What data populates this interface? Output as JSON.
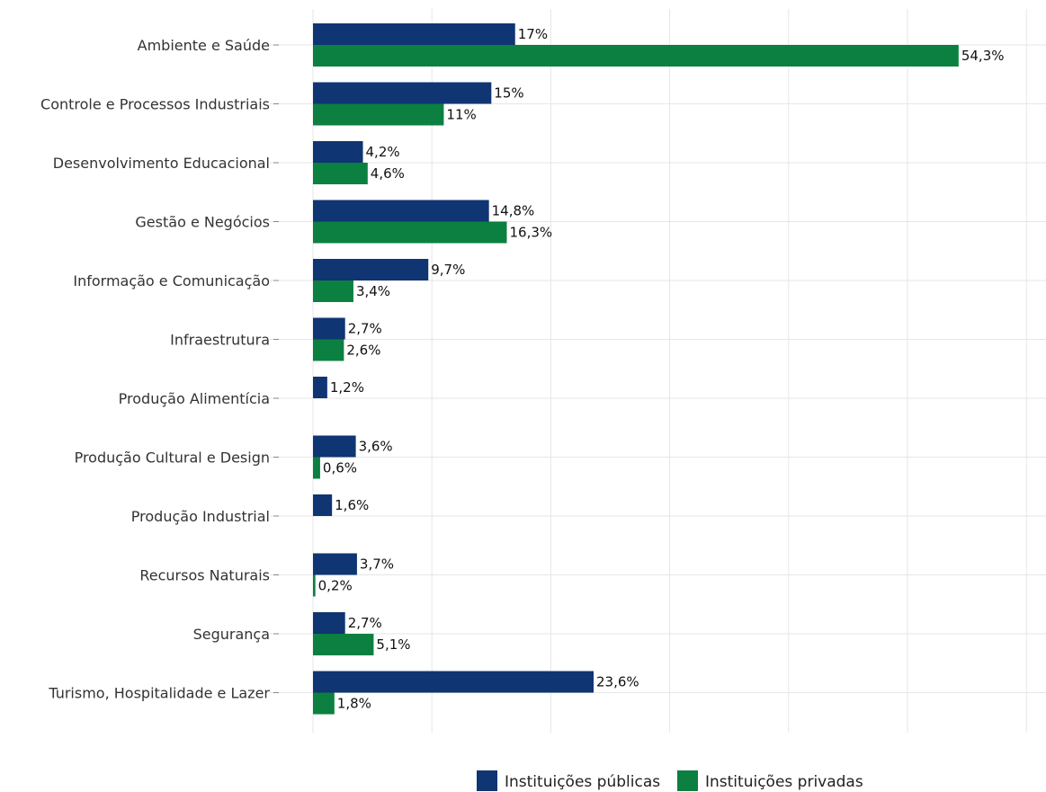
{
  "chart_data": {
    "type": "bar",
    "orientation": "horizontal",
    "categories": [
      "Ambiente e Saúde",
      "Controle e Processos Industriais",
      "Desenvolvimento Educacional",
      "Gestão e Negócios",
      "Informação e Comunicação",
      "Infraestrutura",
      "Produção Alimentícia",
      "Produção Cultural e Design",
      "Produção Industrial",
      "Recursos Naturais",
      "Segurança",
      "Turismo, Hospitalidade e Lazer"
    ],
    "series": [
      {
        "name": "Instituições públicas",
        "color": "#0f3572",
        "values": [
          17,
          15,
          4.2,
          14.8,
          9.7,
          2.7,
          1.2,
          3.6,
          1.6,
          3.7,
          2.7,
          23.6
        ],
        "labels": [
          "17%",
          "15%",
          "4,2%",
          "14,8%",
          "9,7%",
          "2,7%",
          "1,2%",
          "3,6%",
          "1,6%",
          "3,7%",
          "2,7%",
          "23,6%"
        ]
      },
      {
        "name": "Instituições privadas",
        "color": "#0b8040",
        "values": [
          54.3,
          11,
          4.6,
          16.3,
          3.4,
          2.6,
          null,
          0.6,
          null,
          0.2,
          5.1,
          1.8
        ],
        "labels": [
          "54,3%",
          "11%",
          "4,6%",
          "16,3%",
          "3,4%",
          "2,6%",
          null,
          "0,6%",
          null,
          "0,2%",
          "5,1%",
          "1,8%"
        ]
      }
    ],
    "xlim": [
      0,
      60
    ],
    "grid": true,
    "legend_position": "bottom"
  }
}
